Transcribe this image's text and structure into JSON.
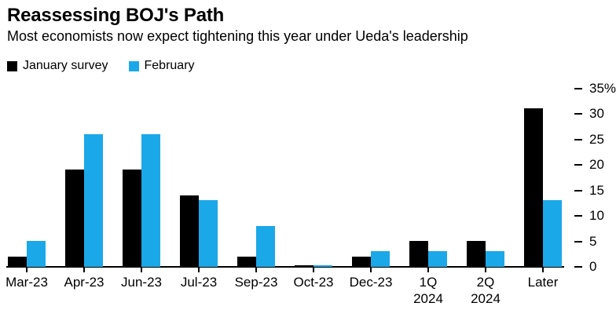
{
  "chart_data": {
    "type": "bar",
    "title": "Reassessing BOJ's Path",
    "subtitle": "Most economists now expect tightening this year under Ueda's leadership",
    "categories": [
      "Mar-23",
      "Apr-23",
      "Jun-23",
      "Jul-23",
      "Sep-23",
      "Oct-23",
      "Dec-23",
      "1Q\n2024",
      "2Q\n2024",
      "Later"
    ],
    "series": [
      {
        "name": "January survey",
        "color": "#000000",
        "values": [
          2,
          19,
          19,
          14,
          2,
          0.3,
          2,
          5,
          5,
          31
        ]
      },
      {
        "name": "February",
        "color": "#1BA8E8",
        "values": [
          5,
          26,
          26,
          13,
          8,
          0.3,
          3,
          3,
          3,
          13
        ]
      }
    ],
    "ylabel": "",
    "xlabel": "",
    "ylim": [
      0,
      35
    ],
    "y_axis_side": "right",
    "y_ticks": [
      0,
      5,
      10,
      15,
      20,
      25,
      30,
      35
    ],
    "y_tick_labels": [
      "0",
      "5",
      "10",
      "15",
      "20",
      "25",
      "30",
      "35%"
    ],
    "grid": false,
    "legend_position": "top-left",
    "background_color": "#ffffff",
    "text_color": "#000000"
  }
}
